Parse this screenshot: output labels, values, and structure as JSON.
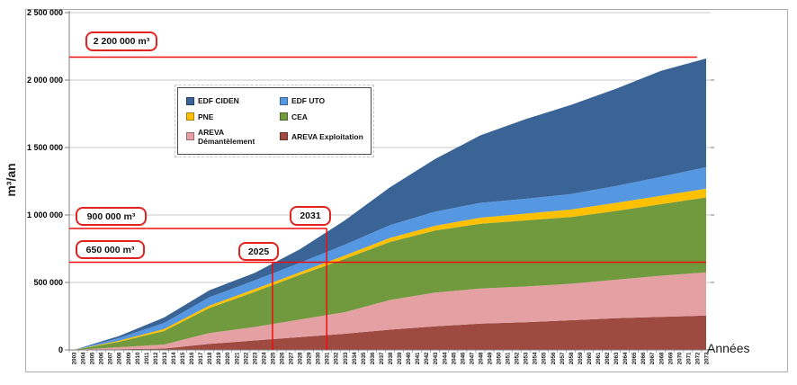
{
  "figure": {
    "y_axis_title": "m³/an",
    "x_axis_title": "Années"
  },
  "chart_data": {
    "type": "area",
    "stacked": true,
    "title": "",
    "xlabel": "Années",
    "ylabel": "m³/an",
    "x": {
      "start": 2003,
      "end": 2073,
      "step": 1
    },
    "ylim": [
      0,
      2500000
    ],
    "y_tick_values": [
      0,
      500000,
      1000000,
      1500000,
      2000000,
      2500000
    ],
    "y_tick_labels": [
      "0",
      "500 000",
      "1 000 000",
      "1 500 000",
      "2 000 000",
      "2 500 000"
    ],
    "grid": "horizontal",
    "legend_position": "inside-top-left",
    "sample_years": [
      2003,
      2008,
      2013,
      2018,
      2023,
      2028,
      2033,
      2038,
      2043,
      2048,
      2053,
      2058,
      2063,
      2068,
      2073
    ],
    "series": [
      {
        "name": "AREVA Exploitation",
        "color": "#9e4a40",
        "values": [
          0,
          5000,
          10000,
          45000,
          70000,
          95000,
          120000,
          150000,
          175000,
          195000,
          205000,
          220000,
          235000,
          245000,
          255000
        ]
      },
      {
        "name": "AREVA Démantèlement",
        "color": "#e5a0a4",
        "values": [
          0,
          15000,
          30000,
          80000,
          100000,
          130000,
          160000,
          220000,
          250000,
          260000,
          265000,
          270000,
          285000,
          305000,
          320000
        ]
      },
      {
        "name": "CEA",
        "color": "#71993e",
        "values": [
          0,
          40000,
          100000,
          185000,
          260000,
          330000,
          395000,
          430000,
          460000,
          480000,
          490000,
          495000,
          510000,
          530000,
          555000
        ]
      },
      {
        "name": "PNE",
        "color": "#ffc000",
        "values": [
          0,
          8000,
          15000,
          18000,
          20000,
          20000,
          25000,
          30000,
          35000,
          45000,
          50000,
          55000,
          60000,
          63000,
          65000
        ]
      },
      {
        "name": "EDF UTO",
        "color": "#5597e0",
        "values": [
          0,
          20000,
          45000,
          62000,
          65000,
          70000,
          80000,
          95000,
          105000,
          110000,
          110000,
          115000,
          125000,
          140000,
          160000
        ]
      },
      {
        "name": "EDF CIDEN",
        "color": "#3a6396",
        "values": [
          0,
          15000,
          40000,
          52000,
          55000,
          100000,
          180000,
          280000,
          390000,
          500000,
          590000,
          660000,
          720000,
          785000,
          805000
        ]
      }
    ],
    "legend_items": [
      {
        "label": "EDF CIDEN",
        "color": "#3a6396"
      },
      {
        "label": "EDF UTO",
        "color": "#5597e0"
      },
      {
        "label": "PNE",
        "color": "#ffc000"
      },
      {
        "label": "CEA",
        "color": "#71993e"
      },
      {
        "label": "AREVA Démantèlement",
        "color": "#e5a0a4"
      },
      {
        "label": "AREVA Exploitation",
        "color": "#9e4a40"
      }
    ],
    "reference_lines": {
      "color": "#f20d0d",
      "horizontal": [
        {
          "label": "2 200 000 m³",
          "value": 2170000,
          "x_end_year": 2072
        },
        {
          "label": "900 000 m³",
          "value": 900000,
          "x_end_year": 2031
        },
        {
          "label": "650 000 m³",
          "value": 650000,
          "x_end_year": 2073
        }
      ],
      "vertical": [
        {
          "label": "2025",
          "year": 2025,
          "top_value": 650000
        },
        {
          "label": "2031",
          "year": 2031,
          "top_value": 900000
        }
      ]
    }
  }
}
